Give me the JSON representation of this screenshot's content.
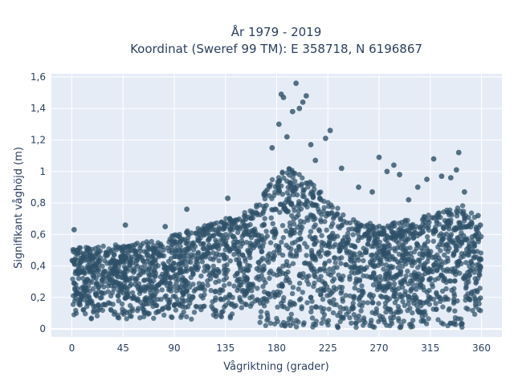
{
  "chart_data": {
    "type": "scatter",
    "title_lines": [
      "År 1979 - 2019",
      "Koordinat (Sweref 99 TM): E 358718, N 6196867"
    ],
    "xlabel": "Vågriktning (grader)",
    "ylabel": "Signifikant våghöjd (m)",
    "xlim": [
      -18,
      378
    ],
    "ylim": [
      -0.05,
      1.62
    ],
    "x_ticks": [
      0,
      45,
      90,
      135,
      180,
      225,
      270,
      315,
      360
    ],
    "y_ticks": [
      0,
      0.2,
      0.4,
      0.6,
      0.8,
      1.0,
      1.2,
      1.4,
      1.6
    ],
    "y_tick_labels": [
      "0",
      "0,2",
      "0,4",
      "0,6",
      "0,8",
      "1",
      "1,2",
      "1,4",
      "1,6"
    ],
    "x_range": [
      0,
      360
    ],
    "y_min": 0.06,
    "grid": true,
    "background": "#e5ecf6",
    "marker_color": "#2e5068",
    "upper_envelope": [
      {
        "x": 0,
        "y": 0.52
      },
      {
        "x": 20,
        "y": 0.52
      },
      {
        "x": 45,
        "y": 0.54
      },
      {
        "x": 75,
        "y": 0.56
      },
      {
        "x": 100,
        "y": 0.62
      },
      {
        "x": 135,
        "y": 0.7
      },
      {
        "x": 160,
        "y": 0.76
      },
      {
        "x": 175,
        "y": 0.95
      },
      {
        "x": 190,
        "y": 1.02
      },
      {
        "x": 205,
        "y": 0.98
      },
      {
        "x": 225,
        "y": 0.82
      },
      {
        "x": 245,
        "y": 0.7
      },
      {
        "x": 270,
        "y": 0.66
      },
      {
        "x": 300,
        "y": 0.7
      },
      {
        "x": 330,
        "y": 0.76
      },
      {
        "x": 345,
        "y": 0.8
      },
      {
        "x": 355,
        "y": 0.7
      },
      {
        "x": 360,
        "y": 0.6
      }
    ],
    "highlighted_points": [
      {
        "x": 2,
        "y": 0.63
      },
      {
        "x": 47,
        "y": 0.66
      },
      {
        "x": 82,
        "y": 0.65
      },
      {
        "x": 101,
        "y": 0.76
      },
      {
        "x": 137,
        "y": 0.83
      },
      {
        "x": 169,
        "y": 0.85
      },
      {
        "x": 176,
        "y": 1.15
      },
      {
        "x": 182,
        "y": 1.3
      },
      {
        "x": 184,
        "y": 1.49
      },
      {
        "x": 186,
        "y": 1.47
      },
      {
        "x": 189,
        "y": 1.22
      },
      {
        "x": 194,
        "y": 1.38
      },
      {
        "x": 197,
        "y": 1.56
      },
      {
        "x": 200,
        "y": 1.4
      },
      {
        "x": 203,
        "y": 1.44
      },
      {
        "x": 206,
        "y": 1.48
      },
      {
        "x": 210,
        "y": 1.17
      },
      {
        "x": 214,
        "y": 1.07
      },
      {
        "x": 223,
        "y": 1.21
      },
      {
        "x": 227,
        "y": 1.26
      },
      {
        "x": 237,
        "y": 1.02
      },
      {
        "x": 252,
        "y": 0.9
      },
      {
        "x": 264,
        "y": 0.87
      },
      {
        "x": 270,
        "y": 1.09
      },
      {
        "x": 277,
        "y": 1.0
      },
      {
        "x": 283,
        "y": 1.04
      },
      {
        "x": 288,
        "y": 0.98
      },
      {
        "x": 296,
        "y": 0.82
      },
      {
        "x": 304,
        "y": 0.9
      },
      {
        "x": 312,
        "y": 0.95
      },
      {
        "x": 318,
        "y": 1.08
      },
      {
        "x": 325,
        "y": 0.97
      },
      {
        "x": 333,
        "y": 0.96
      },
      {
        "x": 338,
        "y": 1.01
      },
      {
        "x": 340,
        "y": 1.12
      },
      {
        "x": 345,
        "y": 0.87
      },
      {
        "x": 357,
        "y": 0.72
      },
      {
        "x": 359,
        "y": 0.66
      }
    ]
  }
}
